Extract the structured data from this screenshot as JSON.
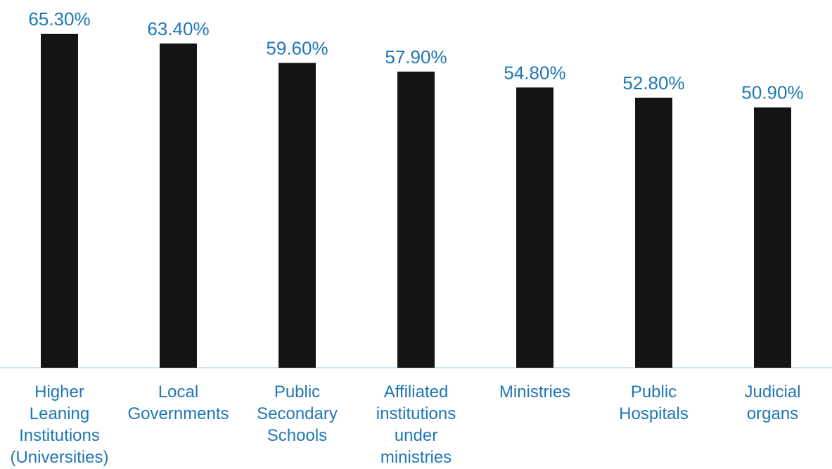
{
  "chart_data": {
    "type": "bar",
    "title": "",
    "xlabel": "",
    "ylabel": "",
    "categories": [
      "Higher Leaning Institutions (Universities)",
      "Local Governments",
      "Public Secondary Schools",
      "Affiliated institutions under ministries",
      "Ministries",
      "Public Hospitals",
      "Judicial organs"
    ],
    "category_lines": [
      [
        "Higher",
        "Leaning",
        "Institutions",
        "(Universities)"
      ],
      [
        "Local",
        "Governments"
      ],
      [
        "Public",
        "Secondary",
        "Schools"
      ],
      [
        "Affiliated",
        "institutions",
        "under",
        "ministries"
      ],
      [
        "Ministries"
      ],
      [
        "Public",
        "Hospitals"
      ],
      [
        "Judicial",
        "organs"
      ]
    ],
    "values": [
      65.3,
      63.4,
      59.6,
      57.9,
      54.8,
      52.8,
      50.9
    ],
    "value_labels": [
      "65.30%",
      "63.40%",
      "59.60%",
      "57.90%",
      "54.80%",
      "52.80%",
      "50.90%"
    ],
    "ylim": [
      0,
      70
    ],
    "grid": false,
    "legend": "none",
    "colors": {
      "bar": "#141414",
      "label": "#1f77b4",
      "axis": "#cfe3f1"
    }
  }
}
